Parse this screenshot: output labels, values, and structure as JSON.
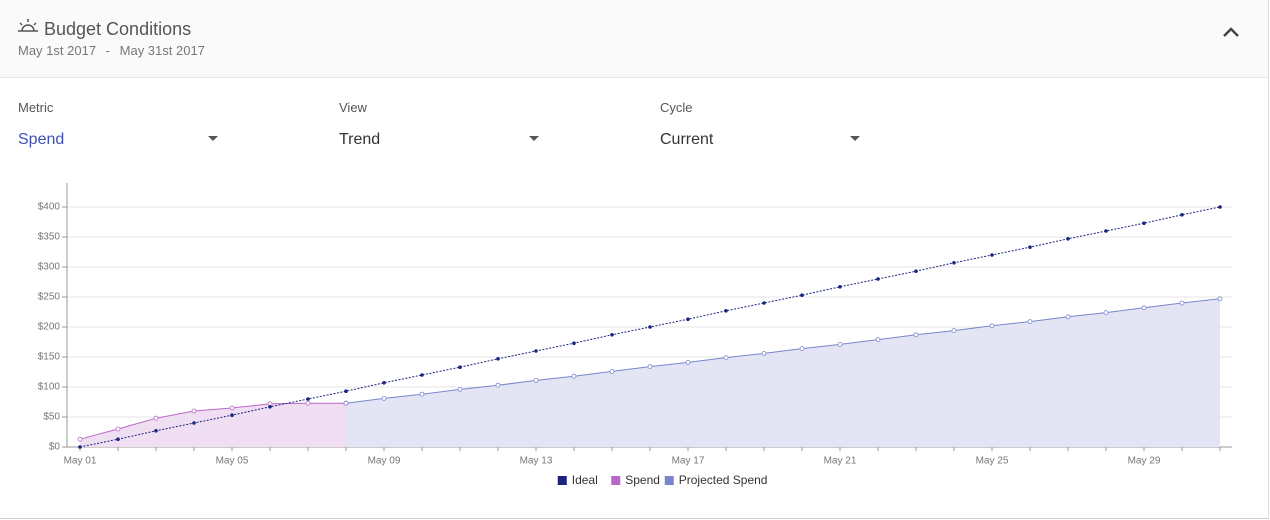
{
  "header": {
    "title": "Budget Conditions",
    "date_start": "May 1st 2017",
    "date_separator": "-",
    "date_end": "May 31st 2017"
  },
  "controls": [
    {
      "label": "Metric",
      "value": "Spend"
    },
    {
      "label": "View",
      "value": "Trend"
    },
    {
      "label": "Cycle",
      "value": "Current"
    }
  ],
  "chart_data": {
    "type": "line",
    "area": true,
    "categories": [
      "May 01",
      null,
      null,
      null,
      "May 05",
      null,
      null,
      null,
      "May 09",
      null,
      null,
      null,
      "May 13",
      null,
      null,
      null,
      "May 17",
      null,
      null,
      null,
      "May 21",
      null,
      null,
      null,
      "May 25",
      null,
      null,
      null,
      "May 29",
      null,
      null
    ],
    "series": [
      {
        "name": "Ideal",
        "color": "#1a237e",
        "values": [
          0,
          13,
          27,
          40,
          53,
          67,
          80,
          93,
          107,
          120,
          133,
          147,
          160,
          173,
          187,
          200,
          213,
          227,
          240,
          253,
          267,
          280,
          293,
          307,
          320,
          333,
          347,
          360,
          373,
          387,
          400
        ]
      },
      {
        "name": "Spend",
        "color": "#ba68c8",
        "values": [
          13,
          30,
          48,
          60,
          65,
          72,
          73,
          73,
          null,
          null,
          null,
          null,
          null,
          null,
          null,
          null,
          null,
          null,
          null,
          null,
          null,
          null,
          null,
          null,
          null,
          null,
          null,
          null,
          null,
          null,
          null
        ]
      },
      {
        "name": "Projected Spend",
        "color": "#7986cb",
        "values": [
          null,
          null,
          null,
          null,
          null,
          null,
          null,
          73,
          81,
          88,
          96,
          103,
          111,
          118,
          126,
          134,
          141,
          149,
          156,
          164,
          171,
          179,
          187,
          194,
          202,
          209,
          217,
          224,
          232,
          240,
          247
        ]
      }
    ],
    "ylim": [
      0,
      440
    ],
    "yticks": [
      {
        "value": 0,
        "label": "$0"
      },
      {
        "value": 50,
        "label": "$50"
      },
      {
        "value": 100,
        "label": "$100"
      },
      {
        "value": 150,
        "label": "$150"
      },
      {
        "value": 200,
        "label": "$200"
      },
      {
        "value": 250,
        "label": "$250"
      },
      {
        "value": 300,
        "label": "$300"
      },
      {
        "value": 350,
        "label": "$350"
      },
      {
        "value": 400,
        "label": "$400"
      }
    ],
    "grid": true,
    "legend": "bottom"
  }
}
